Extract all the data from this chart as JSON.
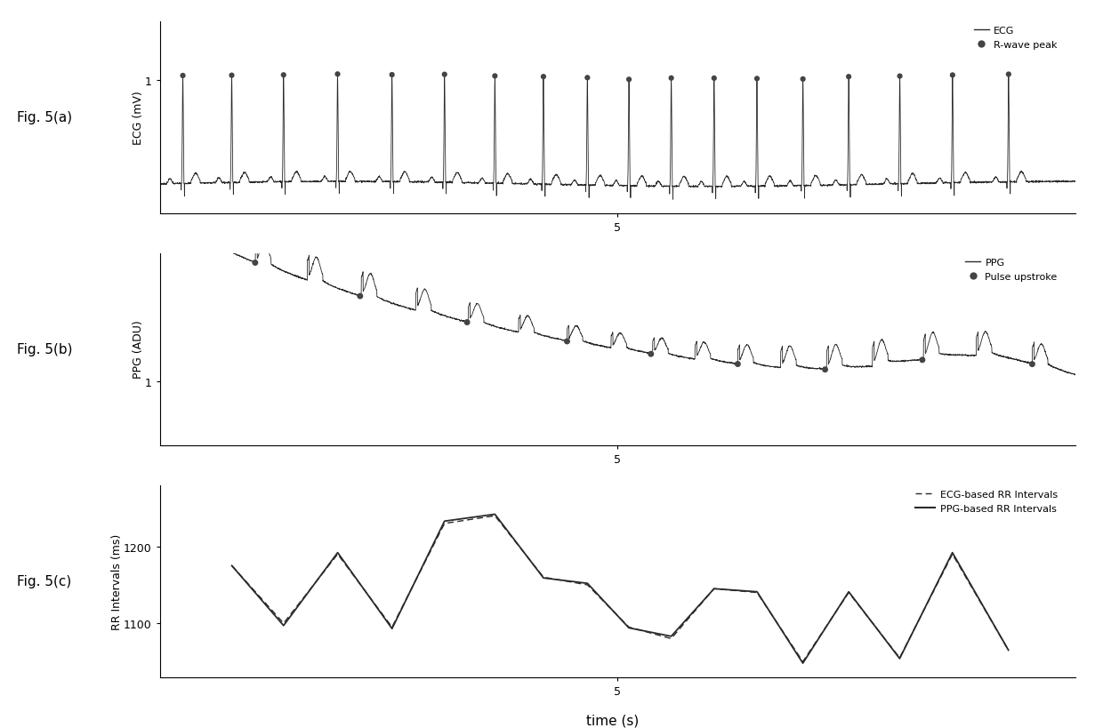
{
  "fig_labels": [
    "Fig. 5(a)",
    "Fig. 5(b)",
    "Fig. 5(c)"
  ],
  "ecg_ylabel": "ECG (mV)",
  "ppg_ylabel": "PPG (ADU)",
  "rr_ylabel": "RR Intervals (ms)",
  "xlabel": "time (s)",
  "rr_yticks": [
    1100,
    1200
  ],
  "background_color": "#ffffff",
  "line_color": "#2a2a2a",
  "dot_color": "#444444",
  "ecg_legend": [
    "ECG",
    "R-wave peak"
  ],
  "ppg_legend": [
    "PPG",
    "Pulse upstroke"
  ],
  "rr_legend": [
    "ECG-based RR Intervals",
    "PPG-based RR Intervals"
  ],
  "total_time": 10.0,
  "fs": 500
}
